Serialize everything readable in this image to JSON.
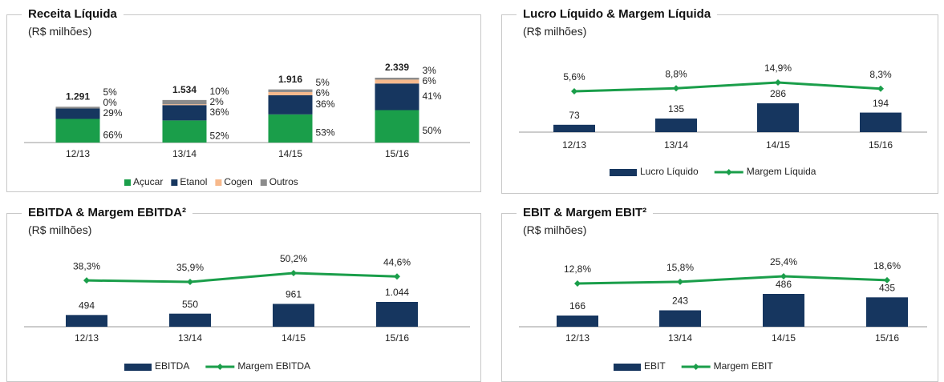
{
  "chart_data": [
    {
      "type": "stacked_bar",
      "title": "Receita Líquida",
      "subtitle": "(R$ milhões)",
      "categories": [
        "12/13",
        "13/14",
        "14/15",
        "15/16"
      ],
      "values": [
        1291,
        1534,
        1916,
        2339
      ],
      "value_labels": [
        "1.291",
        "1.534",
        "1.916",
        "2.339"
      ],
      "series": [
        {
          "name": "Açucar",
          "color": "#1a9e4a",
          "label_color": "#1a9e4a",
          "values": [
            66,
            52,
            53,
            50
          ],
          "value_labels": [
            "66%",
            "52%",
            "53%",
            "50%"
          ]
        },
        {
          "name": "Etanol",
          "color": "#16365f",
          "label_color": "#16365f",
          "values": [
            29,
            36,
            36,
            41
          ],
          "value_labels": [
            "29%",
            "36%",
            "36%",
            "41%"
          ]
        },
        {
          "name": "Cogen",
          "color": "#f7b98c",
          "label_color": "#e8822e",
          "values": [
            0,
            2,
            6,
            6
          ],
          "value_labels": [
            "0%",
            "2%",
            "6%",
            "6%"
          ]
        },
        {
          "name": "Outros",
          "color": "#8c8c8c",
          "label_color": "#8c8c8c",
          "values": [
            5,
            10,
            5,
            3
          ],
          "value_labels": [
            "5%",
            "10%",
            "5%",
            "3%"
          ]
        }
      ]
    },
    {
      "type": "bar_line",
      "title": "Lucro Líquido & Margem Líquida",
      "subtitle": "(R$ milhões)",
      "categories": [
        "12/13",
        "13/14",
        "14/15",
        "15/16"
      ],
      "series": [
        {
          "name": "Lucro Líquido",
          "type": "bar",
          "color": "#16365f",
          "values": [
            73,
            135,
            286,
            194
          ]
        },
        {
          "name": "Margem Líquida",
          "type": "line",
          "axis": "y2",
          "color": "#1a9e4a",
          "values": [
            5.6,
            8.8,
            14.9,
            8.3
          ],
          "value_labels": [
            "5,6%",
            "8,8%",
            "14,9%",
            "8,3%"
          ]
        }
      ]
    },
    {
      "type": "bar_line",
      "title": "EBITDA & Margem EBITDA²",
      "subtitle": "(R$ milhões)",
      "categories": [
        "12/13",
        "13/14",
        "14/15",
        "15/16"
      ],
      "series": [
        {
          "name": "EBITDA",
          "type": "bar",
          "color": "#16365f",
          "values": [
            494,
            550,
            961,
            1044
          ],
          "value_labels": [
            "494",
            "550",
            "961",
            "1.044"
          ]
        },
        {
          "name": "Margem EBITDA",
          "type": "line",
          "axis": "y2",
          "color": "#1a9e4a",
          "values": [
            38.3,
            35.9,
            50.2,
            44.6
          ],
          "value_labels": [
            "38,3%",
            "35,9%",
            "50,2%",
            "44,6%"
          ]
        }
      ]
    },
    {
      "type": "bar_line",
      "title": "EBIT & Margem EBIT²",
      "subtitle": "(R$ milhões)",
      "categories": [
        "12/13",
        "13/14",
        "14/15",
        "15/16"
      ],
      "series": [
        {
          "name": "EBIT",
          "type": "bar",
          "color": "#16365f",
          "values": [
            166,
            243,
            486,
            435
          ]
        },
        {
          "name": "Margem EBIT",
          "type": "line",
          "axis": "y2",
          "color": "#1a9e4a",
          "values": [
            12.8,
            15.8,
            25.4,
            18.6
          ],
          "value_labels": [
            "12,8%",
            "15,8%",
            "25,4%",
            "18,6%"
          ]
        }
      ]
    }
  ]
}
